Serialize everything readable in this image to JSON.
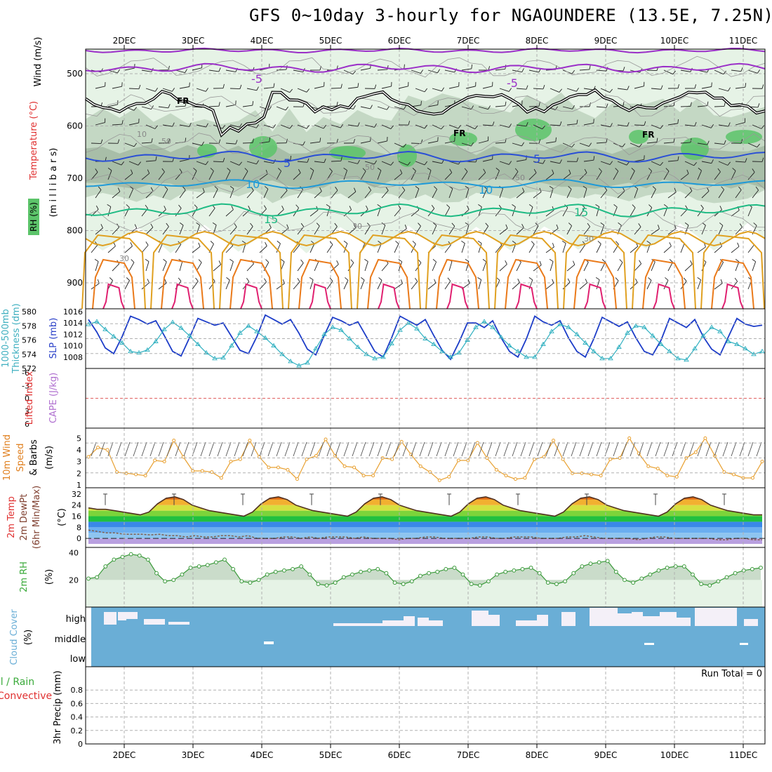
{
  "title": "GFS 0~10day 3-hourly for NGAOUNDERE (13.5E, 7.25N)",
  "days": [
    "2DEC",
    "3DEC",
    "4DEC",
    "5DEC",
    "6DEC",
    "7DEC",
    "8DEC",
    "9DEC",
    "10DEC",
    "11DEC"
  ],
  "colors": {
    "grid": "#b0b0b0",
    "rh_light": "#e6f3e6",
    "rh_mid": "#c4d8c4",
    "rh_dark": "#a8bea8",
    "rh_wet": "#5cc46a",
    "temp_neg5": "#9b30c8",
    "temp_5": "#2a4fd6",
    "temp_10": "#1e9ad8",
    "temp_15": "#1fbb84",
    "temp_20": "#e0a020",
    "temp_25": "#ea7a1a",
    "temp_30": "#e02070",
    "slp": "#1c3cc8",
    "thickness": "#30b0c0",
    "li_zero": "#e06060",
    "wind10m": "#e8a030",
    "dewpt": "#806050",
    "rh2m": "#3a9a3a",
    "cloud": "#6aaed6",
    "cloud_gap": "#f4f0f8",
    "label_red": "#e03030",
    "label_green": "#3aaa3a",
    "label_purple": "#b070d0",
    "label_orange": "#e08020",
    "label_cyan": "#40b0c0",
    "label_blue": "#2a40c8"
  },
  "panels": {
    "upper": {
      "ylabel_wind": "Wind (m/s)",
      "ylabel_temp": "Temperature (°C)",
      "ylabel_rh": "RH (%)",
      "ylabel_mb": "(m i l l i b a r s)",
      "yticks": [
        "500",
        "600",
        "700",
        "800",
        "900"
      ],
      "contour_labels": {
        "m5": "-5",
        "p5": "5",
        "p10": "10",
        "p15": "15",
        "fr": "FR",
        "rh30": "30",
        "rh50": "50",
        "rh10": "10"
      }
    },
    "slp": {
      "ylabel_thick": "Thickness (dm)",
      "ylabel_thick_top": "1000-500mb",
      "ylabel_slp": "SLP (mb)",
      "left_ticks": [
        "580",
        "578",
        "576",
        "574",
        "572"
      ],
      "right_ticks": [
        "1016",
        "1014",
        "1012",
        "1010",
        "1008"
      ]
    },
    "cape": {
      "ylabel_li": "Lifted Index",
      "ylabel_cape": "CAPE (J/kg)",
      "ticks": [
        "-6",
        "-3",
        "0",
        "3",
        "6"
      ]
    },
    "wind10": {
      "ylabel_1": "10m Wind",
      "ylabel_2": "Speed",
      "ylabel_3": "& Barbs",
      "ylabel_unit": "(m/s)",
      "ticks": [
        "5",
        "4",
        "3",
        "2",
        "1"
      ]
    },
    "temp": {
      "ylabel_1": "2m Temp",
      "ylabel_2": "2m DewPt",
      "ylabel_3": "(6hr Min/Max)",
      "ylabel_unit": "(°C)",
      "ticks": [
        "32",
        "24",
        "16",
        "8",
        "0"
      ]
    },
    "rh": {
      "ylabel": "2m RH",
      "ylabel_unit": "(%)",
      "ticks": [
        "40",
        "20"
      ]
    },
    "cloud": {
      "ylabel": "Cloud Cover",
      "ylabel_unit": "(%)",
      "levels": [
        "high",
        "middle",
        "low"
      ]
    },
    "precip": {
      "ylabel_1": "Total / Rain",
      "ylabel_2": "Convective",
      "ylabel_3": "3hr Precip (mm)",
      "ticks": [
        "0.8",
        "0.6",
        "0.4",
        "0.2",
        "0"
      ],
      "run_total": "Run Total = 0"
    }
  },
  "chart_data": [
    {
      "type": "line",
      "title": "3hr SLP and 1000-500mb Thickness",
      "series": [
        {
          "name": "SLP (mb)",
          "values": [
            1014.6,
            1012.4,
            1009.6,
            1008.6,
            1011.6,
            1015.2,
            1014.6,
            1013.8,
            1014.4,
            1011.8,
            1009.0,
            1008.2,
            1011.4,
            1014.8,
            1014.2,
            1013.6,
            1014.0,
            1011.6,
            1009.2,
            1008.6,
            1011.6,
            1015.4,
            1014.6,
            1013.8,
            1014.6,
            1012.2,
            1009.4,
            1008.4,
            1011.8,
            1015.0,
            1014.4,
            1013.6,
            1014.2,
            1011.6,
            1009.0,
            1008.0,
            1011.4,
            1015.2,
            1014.4,
            1013.6,
            1014.6,
            1011.8,
            1009.2,
            1007.6,
            1010.6,
            1014.0,
            1014.0,
            1013.2,
            1014.4,
            1011.4,
            1009.0,
            1008.0,
            1011.2,
            1015.2,
            1014.2,
            1013.6,
            1014.4,
            1011.4,
            1009.0,
            1008.0,
            1011.2,
            1015.0,
            1014.2,
            1013.4,
            1014.2,
            1011.4,
            1009.0,
            1008.4,
            1011.0,
            1014.8,
            1014.0,
            1013.2,
            1014.6,
            1011.6,
            1009.4,
            1008.4,
            1011.6,
            1014.8,
            1013.8,
            1013.4,
            1013.6
          ]
        },
        {
          "name": "Thickness (dm)",
          "values": [
            578.2,
            578.6,
            577.5,
            576.5,
            575.6,
            574.4,
            574.2,
            574.6,
            575.8,
            577.5,
            578.5,
            577.7,
            576.6,
            575.4,
            574.2,
            573.4,
            573.5,
            575.2,
            577.0,
            578.0,
            577.2,
            576.3,
            575.2,
            574.0,
            573.0,
            572.4,
            572.8,
            574.8,
            576.8,
            577.8,
            577.4,
            576.2,
            575.0,
            574.0,
            573.4,
            573.6,
            575.5,
            577.4,
            578.4,
            577.6,
            576.2,
            575.4,
            574.4,
            573.6,
            574.2,
            576.0,
            577.8,
            578.6,
            577.8,
            576.4,
            575.2,
            574.4,
            573.6,
            573.6,
            575.4,
            577.2,
            578.2,
            577.8,
            576.8,
            575.6,
            574.4,
            573.4,
            573.4,
            575.0,
            577.0,
            578.0,
            577.8,
            576.6,
            575.4,
            574.4,
            573.4,
            573.2,
            574.8,
            576.6,
            577.8,
            577.2,
            575.8,
            575.4,
            574.8,
            574.0,
            574.4
          ]
        }
      ],
      "ylim_slp": [
        1006,
        1016
      ],
      "ylim_thickness": [
        572,
        580
      ]
    },
    {
      "type": "line",
      "title": "10m Wind Speed (m/s)",
      "values": [
        3.4,
        4.2,
        4.0,
        2.1,
        2.0,
        1.9,
        1.8,
        3.1,
        3.0,
        4.8,
        3.4,
        2.2,
        2.2,
        2.1,
        1.6,
        3.0,
        3.2,
        4.8,
        3.4,
        2.5,
        2.5,
        2.3,
        1.5,
        3.2,
        3.5,
        4.9,
        3.5,
        2.6,
        2.5,
        1.8,
        1.8,
        3.3,
        3.2,
        4.7,
        3.6,
        2.6,
        2.1,
        1.4,
        1.7,
        3.1,
        3.1,
        4.6,
        3.3,
        2.3,
        1.8,
        1.5,
        1.6,
        3.2,
        3.4,
        4.8,
        3.2,
        2.0,
        2.0,
        1.9,
        1.8,
        3.2,
        3.3,
        5.0,
        3.7,
        2.6,
        2.4,
        1.8,
        1.7,
        3.3,
        3.8,
        5.0,
        3.5,
        2.1,
        1.9,
        1.6,
        1.6,
        3.0
      ],
      "ylim": [
        1,
        5.5
      ]
    },
    {
      "type": "area",
      "title": "2m Temp / 2m DewPt (°C)",
      "series": [
        {
          "name": "2m Temp",
          "values": [
            22,
            21,
            21,
            20,
            19,
            18,
            17,
            19,
            25,
            29,
            30,
            28,
            24,
            22,
            20,
            19,
            18,
            17,
            16,
            19,
            25,
            29,
            30,
            28,
            24,
            22,
            20,
            19,
            18,
            17,
            16,
            19,
            25,
            29,
            30,
            28,
            24,
            22,
            20,
            19,
            18,
            17,
            16,
            19,
            25,
            29,
            30,
            28,
            24,
            22,
            20,
            19,
            18,
            17,
            16,
            19,
            25,
            29,
            30,
            28,
            24,
            22,
            20,
            19,
            18,
            17,
            16,
            19,
            25,
            29,
            30,
            28,
            24,
            22,
            20,
            19,
            18,
            17,
            17
          ]
        },
        {
          "name": "2m DewPt",
          "values": [
            6,
            5,
            4,
            4,
            3,
            3,
            3,
            2.5,
            3,
            2,
            2,
            1,
            2,
            1,
            1,
            2,
            2,
            1,
            2,
            0,
            0,
            0,
            1,
            1,
            0,
            1,
            0,
            1,
            1,
            1,
            0,
            1,
            0,
            0,
            0,
            -1,
            0,
            0,
            1,
            1,
            0,
            0,
            0,
            0,
            1,
            1,
            0,
            0,
            1,
            1,
            1,
            0,
            0,
            0,
            1,
            1,
            2,
            1,
            0,
            0,
            0,
            0,
            -1,
            0,
            1,
            1,
            0,
            0,
            0,
            0,
            0,
            -1,
            -1,
            0,
            0,
            -1,
            -1
          ]
        }
      ],
      "ylim": [
        -4,
        34
      ]
    },
    {
      "type": "area",
      "title": "2m RH (%)",
      "values": [
        21,
        22,
        30,
        35,
        37,
        39,
        38,
        35,
        25,
        19,
        20,
        24,
        29,
        30,
        31,
        33,
        35,
        28,
        19,
        18,
        20,
        24,
        26,
        27,
        28,
        30,
        24,
        17,
        16,
        18,
        22,
        24,
        26,
        27,
        28,
        25,
        18,
        17,
        19,
        23,
        25,
        26,
        28,
        29,
        24,
        17,
        16,
        19,
        24,
        26,
        27,
        28,
        29,
        25,
        18,
        17,
        19,
        25,
        30,
        32,
        33,
        34,
        26,
        20,
        18,
        21,
        24,
        27,
        29,
        30,
        30,
        24,
        17,
        16,
        19,
        22,
        25,
        27,
        28,
        29
      ],
      "ylim": [
        0,
        44
      ]
    },
    {
      "type": "bar",
      "title": "3hr Precip (mm)",
      "values": [
        0
      ],
      "ylim": [
        0,
        1
      ]
    }
  ]
}
